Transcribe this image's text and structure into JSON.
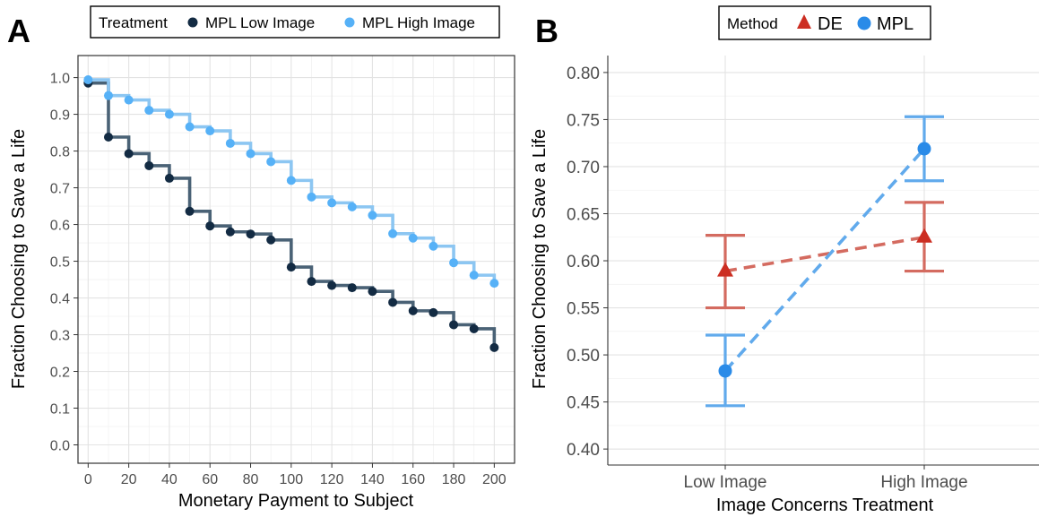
{
  "chart_data": [
    {
      "panel_label": "A",
      "type": "line",
      "xlabel": "Monetary Payment to Subject",
      "ylabel": "Fraction Choosing to Save a Life",
      "xlim": [
        -5,
        210
      ],
      "ylim": [
        -0.05,
        1.06
      ],
      "xticks": [
        0,
        20,
        40,
        60,
        80,
        100,
        120,
        140,
        160,
        180,
        200
      ],
      "yticks": [
        0.0,
        0.1,
        0.2,
        0.3,
        0.4,
        0.5,
        0.6,
        0.7,
        0.8,
        0.9,
        1.0
      ],
      "grid": true,
      "legend": {
        "title": "Treatment",
        "position": "top",
        "entries": [
          "MPL Low Image",
          "MPL High Image"
        ]
      },
      "x": [
        0,
        10,
        20,
        30,
        40,
        50,
        60,
        70,
        80,
        90,
        100,
        110,
        120,
        130,
        140,
        150,
        160,
        170,
        180,
        190,
        200
      ],
      "series": [
        {
          "name": "MPL Low Image",
          "color": "#132b43",
          "line_color": "#4a6276",
          "values": [
            0.985,
            0.838,
            0.793,
            0.76,
            0.726,
            0.636,
            0.596,
            0.58,
            0.574,
            0.558,
            0.484,
            0.445,
            0.434,
            0.428,
            0.418,
            0.388,
            0.365,
            0.36,
            0.327,
            0.316,
            0.265
          ]
        },
        {
          "name": "MPL High Image",
          "color": "#56b1f7",
          "line_color": "#8cc6f2",
          "values": [
            0.994,
            0.951,
            0.939,
            0.911,
            0.9,
            0.866,
            0.855,
            0.821,
            0.793,
            0.771,
            0.72,
            0.675,
            0.659,
            0.648,
            0.625,
            0.575,
            0.563,
            0.541,
            0.496,
            0.462,
            0.44
          ]
        }
      ]
    },
    {
      "panel_label": "B",
      "type": "scatter",
      "xlabel": "Image Concerns Treatment",
      "ylabel": "Fraction Choosing to Save a Life",
      "categories": [
        "Low Image",
        "High Image"
      ],
      "ylim": [
        0.383,
        0.818
      ],
      "yticks": [
        0.4,
        0.45,
        0.5,
        0.55,
        0.6,
        0.65,
        0.7,
        0.75,
        0.8
      ],
      "grid": true,
      "legend": {
        "title": "Method",
        "position": "top",
        "entries": [
          "DE",
          "MPL"
        ]
      },
      "series": [
        {
          "name": "DE",
          "marker": "triangle",
          "color": "#cc2e22",
          "line_color": "#d46b60",
          "values": [
            0.589,
            0.625
          ],
          "lower": [
            0.55,
            0.589
          ],
          "upper": [
            0.627,
            0.662
          ]
        },
        {
          "name": "MPL",
          "marker": "circle",
          "color": "#2a8be8",
          "line_color": "#61aaec",
          "values": [
            0.483,
            0.719
          ],
          "lower": [
            0.446,
            0.685
          ],
          "upper": [
            0.521,
            0.753
          ]
        }
      ]
    }
  ]
}
